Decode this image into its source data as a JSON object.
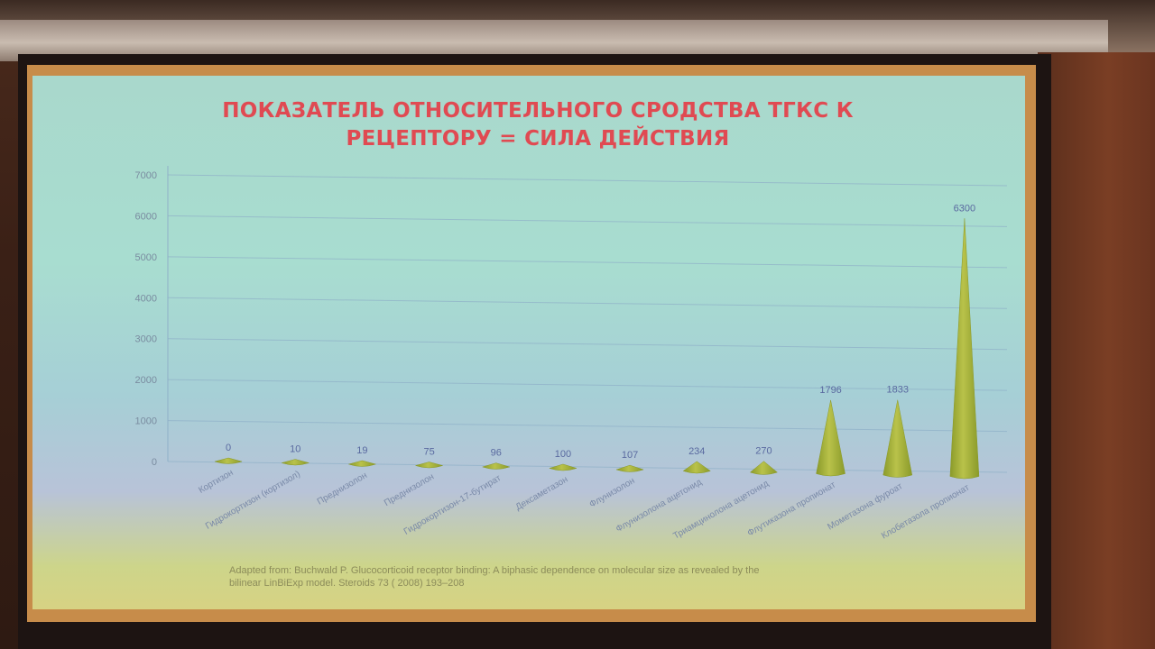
{
  "slide": {
    "title_line1": "ПОКАЗАТЕЛЬ ОТНОСИТЕЛЬНОГО СРОДСТВА ТГКС К",
    "title_line2": "РЕЦЕПТОРУ = СИЛА ДЕЙСТВИЯ",
    "citation": "Adapted from: Buchwald P. Glucocorticoid receptor binding: A biphasic dependence on molecular size as revealed by the bilinear LinBiExp model. Steroids 73 ( 2008) 193–208"
  },
  "chart_data": {
    "type": "bar",
    "bar_shape": "cone",
    "categories": [
      "Кортизон",
      "Гидрокортизон (кортизол)",
      "Преднизолон",
      "Преднизолон",
      "Гидрокортизон-17-бутират",
      "Дексаметазон",
      "Флунизолон",
      "Флунизолона ацетонид",
      "Триамцинолона ацетонид",
      "Флутиказона пропионат",
      "Мометазона фуроат",
      "Клобетазола пропионат"
    ],
    "values": [
      0,
      10,
      19,
      75,
      96,
      100,
      107,
      234,
      270,
      1796,
      1833,
      6300
    ],
    "data_labels": [
      "0",
      "10",
      "19",
      "75",
      "96",
      "100",
      "107",
      "234",
      "270",
      "1796",
      "1833",
      "6300"
    ],
    "yticks": [
      "0",
      "1000",
      "2000",
      "3000",
      "4000",
      "5000",
      "6000",
      "7000"
    ],
    "ylim": [
      0,
      7000
    ],
    "grid": true,
    "colors": {
      "bar": "#8a9a2a",
      "bar_highlight": "#b9c24a",
      "label": "#5a6aa0",
      "axis_text": "#7a8ca0",
      "grid": "#8fb0c8"
    }
  }
}
